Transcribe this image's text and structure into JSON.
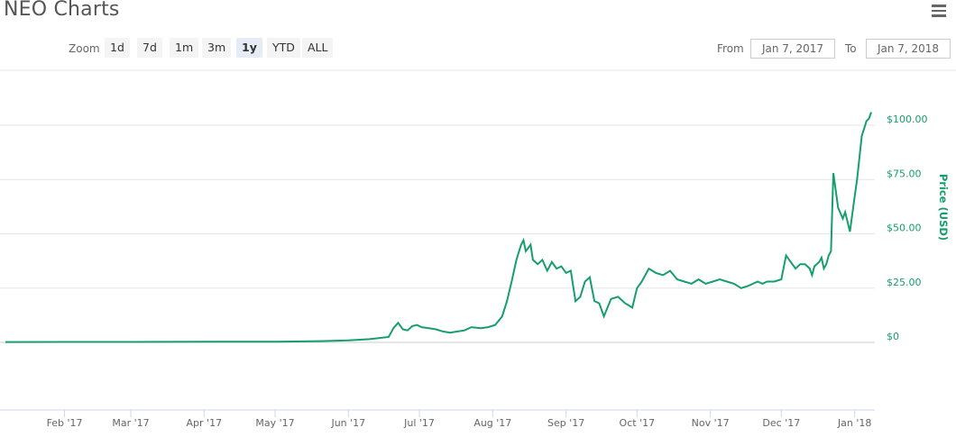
{
  "header": {
    "title": "NEO Charts",
    "menu_icon": "hamburger-menu-icon"
  },
  "zoom": {
    "label": "Zoom",
    "buttons": [
      "1d",
      "7d",
      "1m",
      "3m",
      "1y",
      "YTD",
      "ALL"
    ],
    "active": "1y"
  },
  "range": {
    "from_label": "From",
    "from_value": "Jan 7, 2017",
    "to_label": "To",
    "to_value": "Jan 7, 2018"
  },
  "colors": {
    "line": "#169e6d",
    "axis_label": "#169e6d",
    "grid": "#e6e6e6"
  },
  "chart_data": {
    "type": "line",
    "title": "",
    "xlabel": "",
    "ylabel": "Price (USD)",
    "ylim": [
      -25,
      115
    ],
    "y_ticks": [
      0,
      25,
      50,
      75,
      100
    ],
    "y_tick_labels": [
      "$0",
      "$25.00",
      "$50.00",
      "$75.00",
      "$100.00"
    ],
    "grid": true,
    "x_range": [
      "2017-01-07",
      "2018-01-08"
    ],
    "x_ticks": [
      "2017-02-01",
      "2017-03-01",
      "2017-04-01",
      "2017-05-01",
      "2017-06-01",
      "2017-07-01",
      "2017-08-01",
      "2017-09-01",
      "2017-10-01",
      "2017-11-01",
      "2017-12-01",
      "2018-01-01"
    ],
    "x_tick_labels": [
      "Feb '17",
      "Mar '17",
      "Apr '17",
      "May '17",
      "Jun '17",
      "Jul '17",
      "Aug '17",
      "Sep '17",
      "Oct '17",
      "Nov '17",
      "Dec '17",
      "Jan '18"
    ],
    "series": [
      {
        "x": [
          "2017-01-07",
          "2017-02-01",
          "2017-03-01",
          "2017-04-01",
          "2017-05-01",
          "2017-05-20",
          "2017-06-01",
          "2017-06-10",
          "2017-06-18",
          "2017-06-20",
          "2017-06-22",
          "2017-06-24",
          "2017-06-26",
          "2017-06-28",
          "2017-06-30",
          "2017-07-02",
          "2017-07-05",
          "2017-07-08",
          "2017-07-11",
          "2017-07-14",
          "2017-07-17",
          "2017-07-20",
          "2017-07-23",
          "2017-07-27",
          "2017-07-30",
          "2017-08-02",
          "2017-08-05",
          "2017-08-07",
          "2017-08-09",
          "2017-08-11",
          "2017-08-13",
          "2017-08-14",
          "2017-08-15",
          "2017-08-17",
          "2017-08-18",
          "2017-08-20",
          "2017-08-22",
          "2017-08-24",
          "2017-08-26",
          "2017-08-28",
          "2017-08-30",
          "2017-09-01",
          "2017-09-03",
          "2017-09-05",
          "2017-09-07",
          "2017-09-09",
          "2017-09-11",
          "2017-09-13",
          "2017-09-15",
          "2017-09-17",
          "2017-09-20",
          "2017-09-23",
          "2017-09-26",
          "2017-09-29",
          "2017-10-01",
          "2017-10-03",
          "2017-10-06",
          "2017-10-09",
          "2017-10-12",
          "2017-10-15",
          "2017-10-18",
          "2017-10-21",
          "2017-10-24",
          "2017-10-27",
          "2017-10-30",
          "2017-11-02",
          "2017-11-05",
          "2017-11-08",
          "2017-11-11",
          "2017-11-14",
          "2017-11-17",
          "2017-11-19",
          "2017-11-21",
          "2017-11-23",
          "2017-11-25",
          "2017-11-28",
          "2017-12-01",
          "2017-12-03",
          "2017-12-05",
          "2017-12-07",
          "2017-12-09",
          "2017-12-11",
          "2017-12-13",
          "2017-12-14",
          "2017-12-15",
          "2017-12-17",
          "2017-12-18",
          "2017-12-19",
          "2017-12-20",
          "2017-12-21",
          "2017-12-22",
          "2017-12-23",
          "2017-12-25",
          "2017-12-27",
          "2017-12-28",
          "2017-12-30",
          "2018-01-01",
          "2018-01-02",
          "2018-01-04",
          "2018-01-06",
          "2018-01-07",
          "2018-01-08"
        ],
        "y": [
          0.15,
          0.2,
          0.2,
          0.3,
          0.3,
          0.6,
          0.9,
          1.5,
          2.5,
          6.5,
          9,
          6,
          5.5,
          7.5,
          8,
          7,
          6.5,
          6,
          5,
          4.5,
          5,
          5.5,
          7,
          6.5,
          7,
          8,
          12,
          19,
          28,
          38,
          45,
          47,
          42,
          45,
          38,
          36,
          38,
          33,
          37,
          34,
          35,
          32,
          33,
          19,
          21,
          28,
          30,
          19,
          18,
          12,
          20,
          21,
          18,
          16,
          25,
          28,
          34,
          32,
          31,
          33,
          29,
          28,
          27,
          29,
          27,
          28,
          29,
          28,
          27,
          25,
          26,
          27,
          28,
          27,
          28,
          28,
          29,
          40,
          37,
          34,
          36,
          36,
          34,
          31,
          35,
          37,
          39,
          34,
          36,
          40,
          42,
          78,
          62,
          57,
          60,
          51,
          67,
          75,
          95,
          102,
          103,
          106
        ]
      }
    ]
  }
}
